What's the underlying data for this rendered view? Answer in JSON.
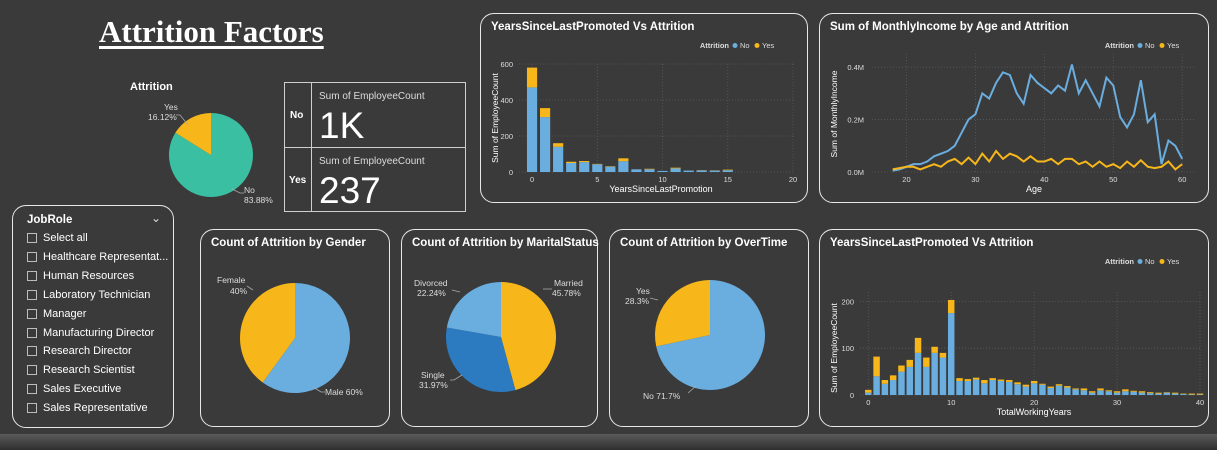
{
  "title": "Attrition Factors",
  "colors": {
    "no": "#6aaddf",
    "yes": "#f7b71a",
    "teal": "#3bbfa3",
    "blue_dark": "#2c7ac0"
  },
  "attrition_pie": {
    "title": "Attrition",
    "slices": [
      {
        "label": "No",
        "pct": "83.88%",
        "value": 83.88
      },
      {
        "label": "Yes",
        "pct": "16.12%",
        "value": 16.12
      }
    ]
  },
  "kpi": {
    "rows": [
      {
        "label": "No",
        "metric": "Sum of EmployeeCount",
        "value": "1K"
      },
      {
        "label": "Yes",
        "metric": "Sum of EmployeeCount",
        "value": "237"
      }
    ]
  },
  "slicer": {
    "title": "JobRole",
    "items": [
      "Select all",
      "Healthcare Representat...",
      "Human Resources",
      "Laboratory Technician",
      "Manager",
      "Manufacturing Director",
      "Research Director",
      "Research Scientist",
      "Sales Executive",
      "Sales Representative"
    ]
  },
  "chart_data": [
    {
      "type": "bar",
      "title": "YearsSinceLastPromoted Vs Attrition",
      "xlabel": "YearsSinceLastPromotion",
      "ylabel": "Sum of EmployeeCount",
      "legend_title": "Attrition",
      "legend": [
        "No",
        "Yes"
      ],
      "legend_position": "top-right",
      "xlim": [
        -1,
        20
      ],
      "ylim": [
        0,
        600
      ],
      "xticks": [
        0,
        5,
        10,
        15,
        20
      ],
      "yticks": [
        0,
        200,
        400,
        600
      ],
      "x": [
        0,
        1,
        2,
        3,
        4,
        5,
        6,
        7,
        8,
        9,
        10,
        11,
        12,
        13,
        14,
        15
      ],
      "series": [
        {
          "name": "No",
          "values": [
            470,
            305,
            140,
            50,
            55,
            43,
            30,
            60,
            15,
            15,
            6,
            20,
            8,
            9,
            8,
            10
          ]
        },
        {
          "name": "Yes",
          "values": [
            110,
            50,
            20,
            7,
            6,
            2,
            2,
            16,
            0,
            3,
            0,
            4,
            0,
            1,
            1,
            3
          ]
        }
      ]
    },
    {
      "type": "line",
      "title": "Sum of MonthlyIncome by Age and Attrition",
      "xlabel": "Age",
      "ylabel": "Sum of MonthlyIncome",
      "legend_title": "Attrition",
      "legend": [
        "No",
        "Yes"
      ],
      "legend_position": "top-right",
      "xlim": [
        15,
        62
      ],
      "ylim": [
        0,
        0.45
      ],
      "xticks": [
        20,
        30,
        40,
        50,
        60
      ],
      "yticks": [
        0,
        0.2,
        0.4
      ],
      "ytick_labels": [
        "0.0M",
        "0.2M",
        "0.4M"
      ],
      "x": [
        18,
        19,
        20,
        21,
        22,
        23,
        24,
        25,
        26,
        27,
        28,
        29,
        30,
        31,
        32,
        33,
        34,
        35,
        36,
        37,
        38,
        39,
        40,
        41,
        42,
        43,
        44,
        45,
        46,
        47,
        48,
        49,
        50,
        51,
        52,
        53,
        54,
        55,
        56,
        57,
        58,
        59,
        60
      ],
      "series": [
        {
          "name": "No",
          "values": [
            0.005,
            0.01,
            0.02,
            0.03,
            0.03,
            0.04,
            0.06,
            0.07,
            0.08,
            0.1,
            0.15,
            0.2,
            0.22,
            0.3,
            0.28,
            0.34,
            0.38,
            0.37,
            0.3,
            0.26,
            0.37,
            0.34,
            0.32,
            0.3,
            0.33,
            0.31,
            0.41,
            0.3,
            0.35,
            0.3,
            0.25,
            0.36,
            0.33,
            0.21,
            0.17,
            0.22,
            0.35,
            0.19,
            0.22,
            0.03,
            0.12,
            0.1,
            0.05
          ]
        },
        {
          "name": "Yes",
          "values": [
            0.01,
            0.015,
            0.02,
            0.02,
            0.01,
            0.02,
            0.03,
            0.02,
            0.04,
            0.05,
            0.03,
            0.055,
            0.03,
            0.07,
            0.04,
            0.08,
            0.05,
            0.07,
            0.06,
            0.04,
            0.06,
            0.04,
            0.04,
            0.05,
            0.03,
            0.05,
            0.05,
            0.03,
            0.04,
            0.02,
            0.04,
            0.02,
            0.03,
            0.015,
            0.04,
            0.02,
            0.045,
            0.02,
            0.015,
            0.02,
            0.04,
            0.01,
            0.03
          ]
        }
      ]
    },
    {
      "type": "pie",
      "title": "Count of Attrition by Gender",
      "slices": [
        {
          "label": "Male",
          "text": "Male 60%",
          "value": 60,
          "color": "#6aaddf"
        },
        {
          "label": "Female",
          "text": "Female\n40%",
          "value": 40,
          "color": "#f7b71a"
        }
      ]
    },
    {
      "type": "pie",
      "title": "Count of Attrition by MaritalStatus",
      "slices": [
        {
          "label": "Married",
          "text": "Married\n45.78%",
          "value": 45.78,
          "color": "#f7b71a"
        },
        {
          "label": "Single",
          "text": "Single\n31.97%",
          "value": 31.97,
          "color": "#2c7ac0"
        },
        {
          "label": "Divorced",
          "text": "Divorced\n22.24%",
          "value": 22.24,
          "color": "#6aaddf"
        }
      ]
    },
    {
      "type": "pie",
      "title": "Count of Attrition by OverTime",
      "slices": [
        {
          "label": "No",
          "text": "No 71.7%",
          "value": 71.7,
          "color": "#6aaddf"
        },
        {
          "label": "Yes",
          "text": "Yes\n28.3%",
          "value": 28.3,
          "color": "#f7b71a"
        }
      ]
    },
    {
      "type": "bar",
      "title": "YearsSinceLastPromoted Vs Attrition",
      "xlabel": "TotalWorkingYears",
      "ylabel": "Sum of EmployeeCount",
      "legend_title": "Attrition",
      "legend": [
        "No",
        "Yes"
      ],
      "legend_position": "top-right",
      "xlim": [
        -1,
        40
      ],
      "ylim": [
        0,
        220
      ],
      "xticks": [
        0,
        10,
        20,
        30,
        40
      ],
      "yticks": [
        0,
        100,
        200
      ],
      "x": [
        0,
        1,
        2,
        3,
        4,
        5,
        6,
        7,
        8,
        9,
        10,
        11,
        12,
        13,
        14,
        15,
        16,
        17,
        18,
        19,
        20,
        21,
        22,
        23,
        24,
        25,
        26,
        27,
        28,
        29,
        30,
        31,
        32,
        33,
        34,
        35,
        36,
        37,
        38,
        39,
        40
      ],
      "series": [
        {
          "name": "No",
          "values": [
            5,
            40,
            24,
            32,
            50,
            60,
            90,
            60,
            90,
            80,
            175,
            30,
            30,
            33,
            25,
            32,
            30,
            28,
            23,
            18,
            25,
            22,
            15,
            20,
            16,
            12,
            10,
            5,
            10,
            8,
            5,
            8,
            7,
            5,
            4,
            3,
            5,
            3,
            2,
            1,
            1
          ]
        },
        {
          "name": "Yes",
          "values": [
            6,
            42,
            8,
            10,
            13,
            15,
            32,
            20,
            13,
            10,
            28,
            6,
            4,
            4,
            7,
            4,
            3,
            4,
            4,
            4,
            5,
            2,
            3,
            3,
            3,
            2,
            4,
            3,
            4,
            2,
            3,
            4,
            2,
            3,
            2,
            2,
            1,
            2,
            1,
            2,
            2
          ]
        }
      ]
    }
  ]
}
